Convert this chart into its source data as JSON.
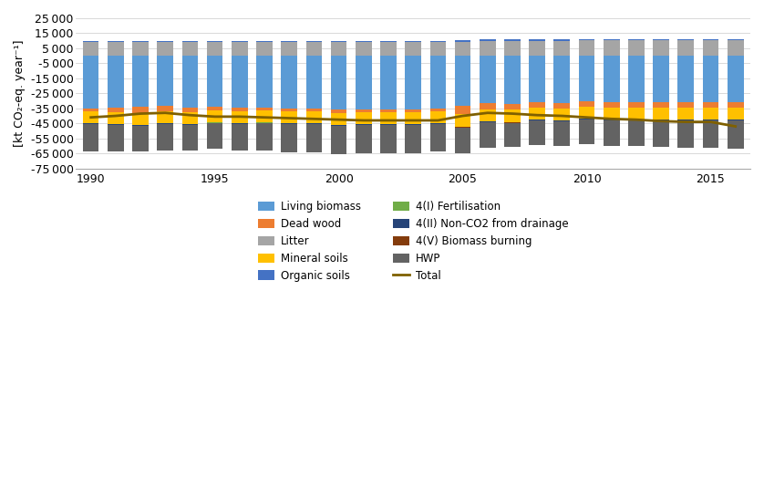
{
  "years": [
    1990,
    1991,
    1992,
    1993,
    1994,
    1995,
    1996,
    1997,
    1998,
    1999,
    2000,
    2001,
    2002,
    2003,
    2004,
    2005,
    2006,
    2007,
    2008,
    2009,
    2010,
    2011,
    2012,
    2013,
    2014,
    2015,
    2016
  ],
  "living_biomass": [
    -35000,
    -34500,
    -34000,
    -33000,
    -34500,
    -34000,
    -34500,
    -34500,
    -35000,
    -35000,
    -35500,
    -35500,
    -35500,
    -35500,
    -35000,
    -33000,
    -31500,
    -32000,
    -31000,
    -31500,
    -30500,
    -31000,
    -31000,
    -31000,
    -31000,
    -31000,
    -31000
  ],
  "dead_wood": [
    -2000,
    -3000,
    -4000,
    -4000,
    -3000,
    -2500,
    -2500,
    -2000,
    -2000,
    -2000,
    -2500,
    -2000,
    -2000,
    -2000,
    -2000,
    -6000,
    -4000,
    -4000,
    -3500,
    -3500,
    -3500,
    -3500,
    -3500,
    -3500,
    -3500,
    -3500,
    -3500
  ],
  "litter": [
    9000,
    9000,
    9000,
    9000,
    9000,
    9000,
    9000,
    9000,
    9000,
    9000,
    9000,
    9000,
    9000,
    9000,
    9000,
    9500,
    10000,
    10000,
    10000,
    10000,
    10500,
    10500,
    10500,
    10500,
    10500,
    10500,
    10500
  ],
  "mineral_soils": [
    -8000,
    -8000,
    -8000,
    -8000,
    -8000,
    -8000,
    -8000,
    -8000,
    -8000,
    -8000,
    -8000,
    -8000,
    -8000,
    -8000,
    -8000,
    -8000,
    -8000,
    -8000,
    -8000,
    -8000,
    -8000,
    -8000,
    -8000,
    -8000,
    -8000,
    -8000,
    -8000
  ],
  "organic_soils": [
    800,
    800,
    800,
    800,
    800,
    800,
    800,
    800,
    800,
    800,
    800,
    800,
    800,
    800,
    800,
    800,
    800,
    800,
    800,
    800,
    800,
    800,
    800,
    800,
    800,
    800,
    800
  ],
  "fertilisation": [
    -50,
    -50,
    -50,
    -50,
    -50,
    -50,
    -50,
    -50,
    -50,
    -50,
    -50,
    -50,
    -50,
    -50,
    -50,
    -50,
    -50,
    -50,
    -50,
    -50,
    -50,
    -50,
    -50,
    -50,
    -50,
    -50,
    -50
  ],
  "non_co2_drainage": [
    -400,
    -400,
    -400,
    -400,
    -400,
    -400,
    -400,
    -400,
    -400,
    -400,
    -400,
    -400,
    -400,
    -400,
    -400,
    -400,
    -400,
    -400,
    -400,
    -400,
    -400,
    -400,
    -400,
    -400,
    -400,
    -400,
    -400
  ],
  "biomass_burning": [
    -150,
    -150,
    -150,
    -150,
    -150,
    -150,
    -150,
    -150,
    -150,
    -150,
    -150,
    -150,
    -150,
    -150,
    -150,
    -150,
    -150,
    -150,
    -150,
    -150,
    -150,
    -150,
    -150,
    -150,
    -150,
    -150,
    -150
  ],
  "hwp": [
    -18000,
    -17500,
    -17000,
    -17500,
    -17000,
    -17000,
    -17500,
    -18000,
    -18500,
    -18500,
    -19000,
    -19000,
    -19000,
    -18500,
    -18000,
    -17500,
    -17000,
    -16000,
    -16500,
    -16500,
    -16500,
    -17000,
    -17000,
    -17500,
    -18000,
    -18000,
    -18500
  ],
  "total": [
    -41000,
    -40000,
    -38500,
    -38000,
    -39500,
    -40500,
    -40500,
    -41000,
    -41500,
    -42000,
    -42500,
    -43000,
    -43000,
    -43000,
    -43000,
    -40000,
    -38000,
    -38500,
    -39500,
    -40000,
    -41000,
    -42000,
    -42500,
    -43500,
    -44000,
    -44000,
    -47000
  ],
  "colors": {
    "living_biomass": "#5B9BD5",
    "dead_wood": "#ED7D31",
    "litter": "#A5A5A5",
    "mineral_soils": "#FFC000",
    "organic_soils": "#4472C4",
    "fertilisation": "#70AD47",
    "non_co2_drainage": "#264478",
    "biomass_burning": "#843C0C",
    "hwp": "#636363",
    "total": "#7F6000"
  },
  "ylim": [
    -75000,
    25000
  ],
  "yticks": [
    -75000,
    -65000,
    -55000,
    -45000,
    -35000,
    -25000,
    -15000,
    -5000,
    5000,
    15000,
    25000
  ],
  "ylabel": "[kt CO₂-eq. year⁻¹]",
  "background_color": "#FFFFFF",
  "plot_area_color": "#FFFFFF"
}
